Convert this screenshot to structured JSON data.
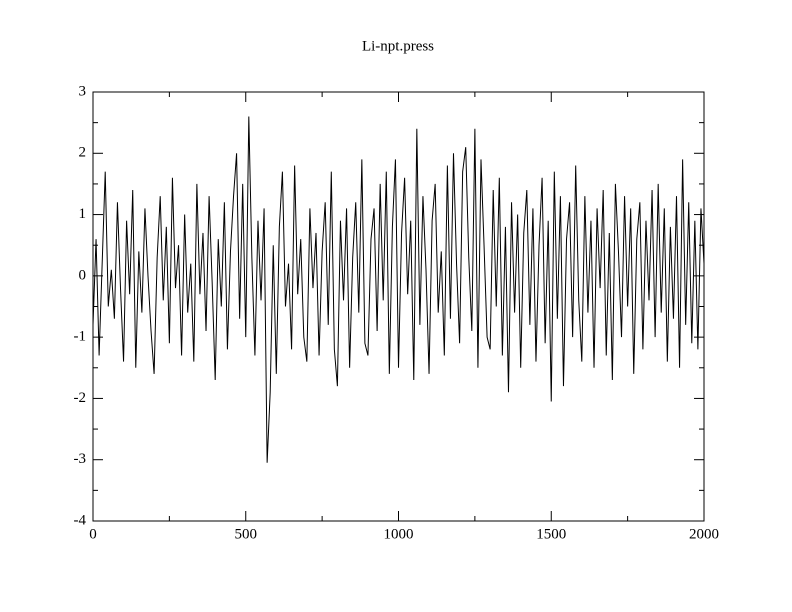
{
  "chart_data": {
    "type": "line",
    "title": "Li-npt.press",
    "color": "#000000",
    "x": [
      0,
      10,
      20,
      30,
      40,
      50,
      60,
      70,
      80,
      90,
      100,
      110,
      120,
      130,
      140,
      150,
      160,
      170,
      180,
      190,
      200,
      210,
      220,
      230,
      240,
      250,
      260,
      270,
      280,
      290,
      300,
      310,
      320,
      330,
      340,
      350,
      360,
      370,
      380,
      390,
      400,
      410,
      420,
      430,
      440,
      450,
      460,
      470,
      480,
      490,
      500,
      510,
      520,
      530,
      540,
      550,
      560,
      570,
      580,
      590,
      600,
      610,
      620,
      630,
      640,
      650,
      660,
      670,
      680,
      690,
      700,
      710,
      720,
      730,
      740,
      750,
      760,
      770,
      780,
      790,
      800,
      810,
      820,
      830,
      840,
      850,
      860,
      870,
      880,
      890,
      900,
      910,
      920,
      930,
      940,
      950,
      960,
      970,
      980,
      990,
      1000,
      1010,
      1020,
      1030,
      1040,
      1050,
      1060,
      1070,
      1080,
      1090,
      1100,
      1110,
      1120,
      1130,
      1140,
      1150,
      1160,
      1170,
      1180,
      1190,
      1200,
      1210,
      1220,
      1230,
      1240,
      1250,
      1260,
      1270,
      1280,
      1290,
      1300,
      1310,
      1320,
      1330,
      1340,
      1350,
      1360,
      1370,
      1380,
      1390,
      1400,
      1410,
      1420,
      1430,
      1440,
      1450,
      1460,
      1470,
      1480,
      1490,
      1500,
      1510,
      1520,
      1530,
      1540,
      1550,
      1560,
      1570,
      1580,
      1590,
      1600,
      1610,
      1620,
      1630,
      1640,
      1650,
      1660,
      1670,
      1680,
      1690,
      1700,
      1710,
      1720,
      1730,
      1740,
      1750,
      1760,
      1770,
      1780,
      1790,
      1800,
      1810,
      1820,
      1830,
      1840,
      1850,
      1860,
      1870,
      1880,
      1890,
      1900,
      1910,
      1920,
      1930,
      1940,
      1950,
      1960,
      1970,
      1980,
      1990,
      2000
    ],
    "values": [
      -0.8,
      0.6,
      -1.3,
      0.2,
      1.7,
      -0.5,
      0.1,
      -0.7,
      1.2,
      -0.2,
      -1.4,
      0.9,
      -0.3,
      1.4,
      -1.5,
      0.4,
      -0.6,
      1.1,
      0.0,
      -0.9,
      -1.6,
      0.3,
      1.3,
      -0.4,
      0.8,
      -1.1,
      1.6,
      -0.2,
      0.5,
      -1.3,
      1.0,
      -0.6,
      0.2,
      -1.4,
      1.5,
      -0.3,
      0.7,
      -0.9,
      1.3,
      -0.1,
      -1.7,
      0.6,
      -0.5,
      1.2,
      -1.2,
      0.4,
      1.3,
      2.0,
      -0.7,
      1.5,
      -1.0,
      2.6,
      0.3,
      -1.3,
      0.9,
      -0.4,
      1.1,
      -3.05,
      -1.9,
      0.5,
      -1.6,
      0.8,
      1.7,
      -0.5,
      0.2,
      -1.2,
      1.8,
      -0.3,
      0.6,
      -1.0,
      -1.4,
      1.1,
      -0.2,
      0.7,
      -1.3,
      0.4,
      1.2,
      -0.8,
      1.7,
      -1.2,
      -1.8,
      0.9,
      -0.4,
      1.1,
      -1.5,
      0.3,
      1.2,
      -0.6,
      1.9,
      -1.1,
      -1.3,
      0.6,
      1.1,
      -0.9,
      1.5,
      -0.4,
      1.7,
      -1.6,
      0.8,
      1.9,
      -1.5,
      0.7,
      1.6,
      -0.3,
      0.9,
      -1.7,
      2.4,
      -0.8,
      1.3,
      0.1,
      -1.6,
      0.9,
      1.5,
      -0.6,
      0.4,
      -1.3,
      1.8,
      -0.7,
      2.0,
      0.2,
      -1.1,
      1.7,
      2.1,
      0.3,
      -0.9,
      2.4,
      -1.5,
      1.9,
      0.5,
      -1.0,
      -1.2,
      1.4,
      -0.5,
      1.6,
      -1.3,
      0.8,
      -1.9,
      1.2,
      -0.6,
      1.0,
      -1.5,
      0.7,
      1.4,
      -0.8,
      1.1,
      -1.4,
      0.5,
      1.6,
      -1.1,
      0.9,
      -2.05,
      1.7,
      -0.7,
      1.3,
      -1.8,
      0.6,
      1.2,
      -1.0,
      1.8,
      -0.4,
      -1.4,
      1.3,
      -0.6,
      0.9,
      -1.5,
      1.1,
      -0.2,
      1.4,
      -1.3,
      0.7,
      -1.7,
      1.5,
      0.4,
      -1.0,
      1.3,
      -0.5,
      1.1,
      -1.6,
      0.6,
      1.2,
      -1.2,
      0.9,
      -0.4,
      1.4,
      -1.0,
      1.5,
      -0.6,
      1.1,
      -1.4,
      0.8,
      -0.7,
      1.3,
      -1.5,
      1.9,
      -0.8,
      1.2,
      -1.1,
      0.9,
      -1.2,
      1.1,
      0.2
    ],
    "xlim": [
      0,
      2000
    ],
    "ylim": [
      -4,
      3
    ],
    "xticks": [
      0,
      500,
      1000,
      1500,
      2000
    ],
    "yticks": [
      -4,
      -3,
      -2,
      -1,
      0,
      1,
      2,
      3
    ],
    "xminorticks": [
      250,
      750,
      1250,
      1750
    ],
    "yminorticks": [
      -3.5,
      -2.5,
      -1.5,
      -0.5,
      0.5,
      1.5,
      2.5
    ]
  }
}
